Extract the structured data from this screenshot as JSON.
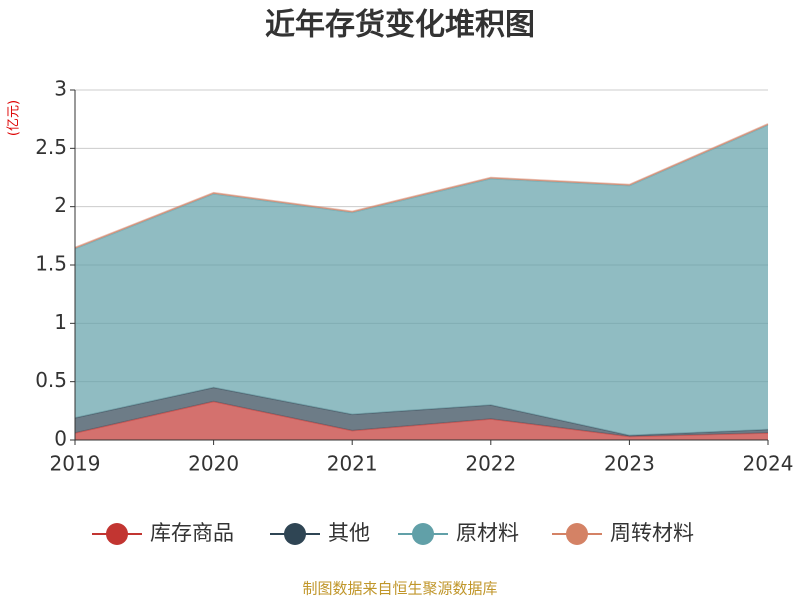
{
  "chart_data": {
    "type": "stacked-area",
    "title": "近年存货变化堆积图",
    "y_label": "(亿元)",
    "footer": "制图数据来自恒生聚源数据库",
    "categories": [
      "2019",
      "2020",
      "2021",
      "2022",
      "2023",
      "2024"
    ],
    "series": [
      {
        "name": "库存商品",
        "color": "#c23531",
        "values": [
          0.06,
          0.33,
          0.08,
          0.18,
          0.03,
          0.06
        ]
      },
      {
        "name": "其他",
        "color": "#2f4554",
        "values": [
          0.13,
          0.12,
          0.14,
          0.12,
          0.01,
          0.03
        ]
      },
      {
        "name": "原材料",
        "color": "#61a0a8",
        "values": [
          1.45,
          1.66,
          1.73,
          1.94,
          2.14,
          2.61
        ]
      },
      {
        "name": "周转材料",
        "color": "#d48265",
        "values": [
          0.01,
          0.01,
          0.01,
          0.01,
          0.01,
          0.01
        ]
      }
    ],
    "ylim": [
      0,
      3
    ],
    "yticks": [
      0,
      0.5,
      1,
      1.5,
      2,
      2.5,
      3
    ],
    "grid": true
  }
}
